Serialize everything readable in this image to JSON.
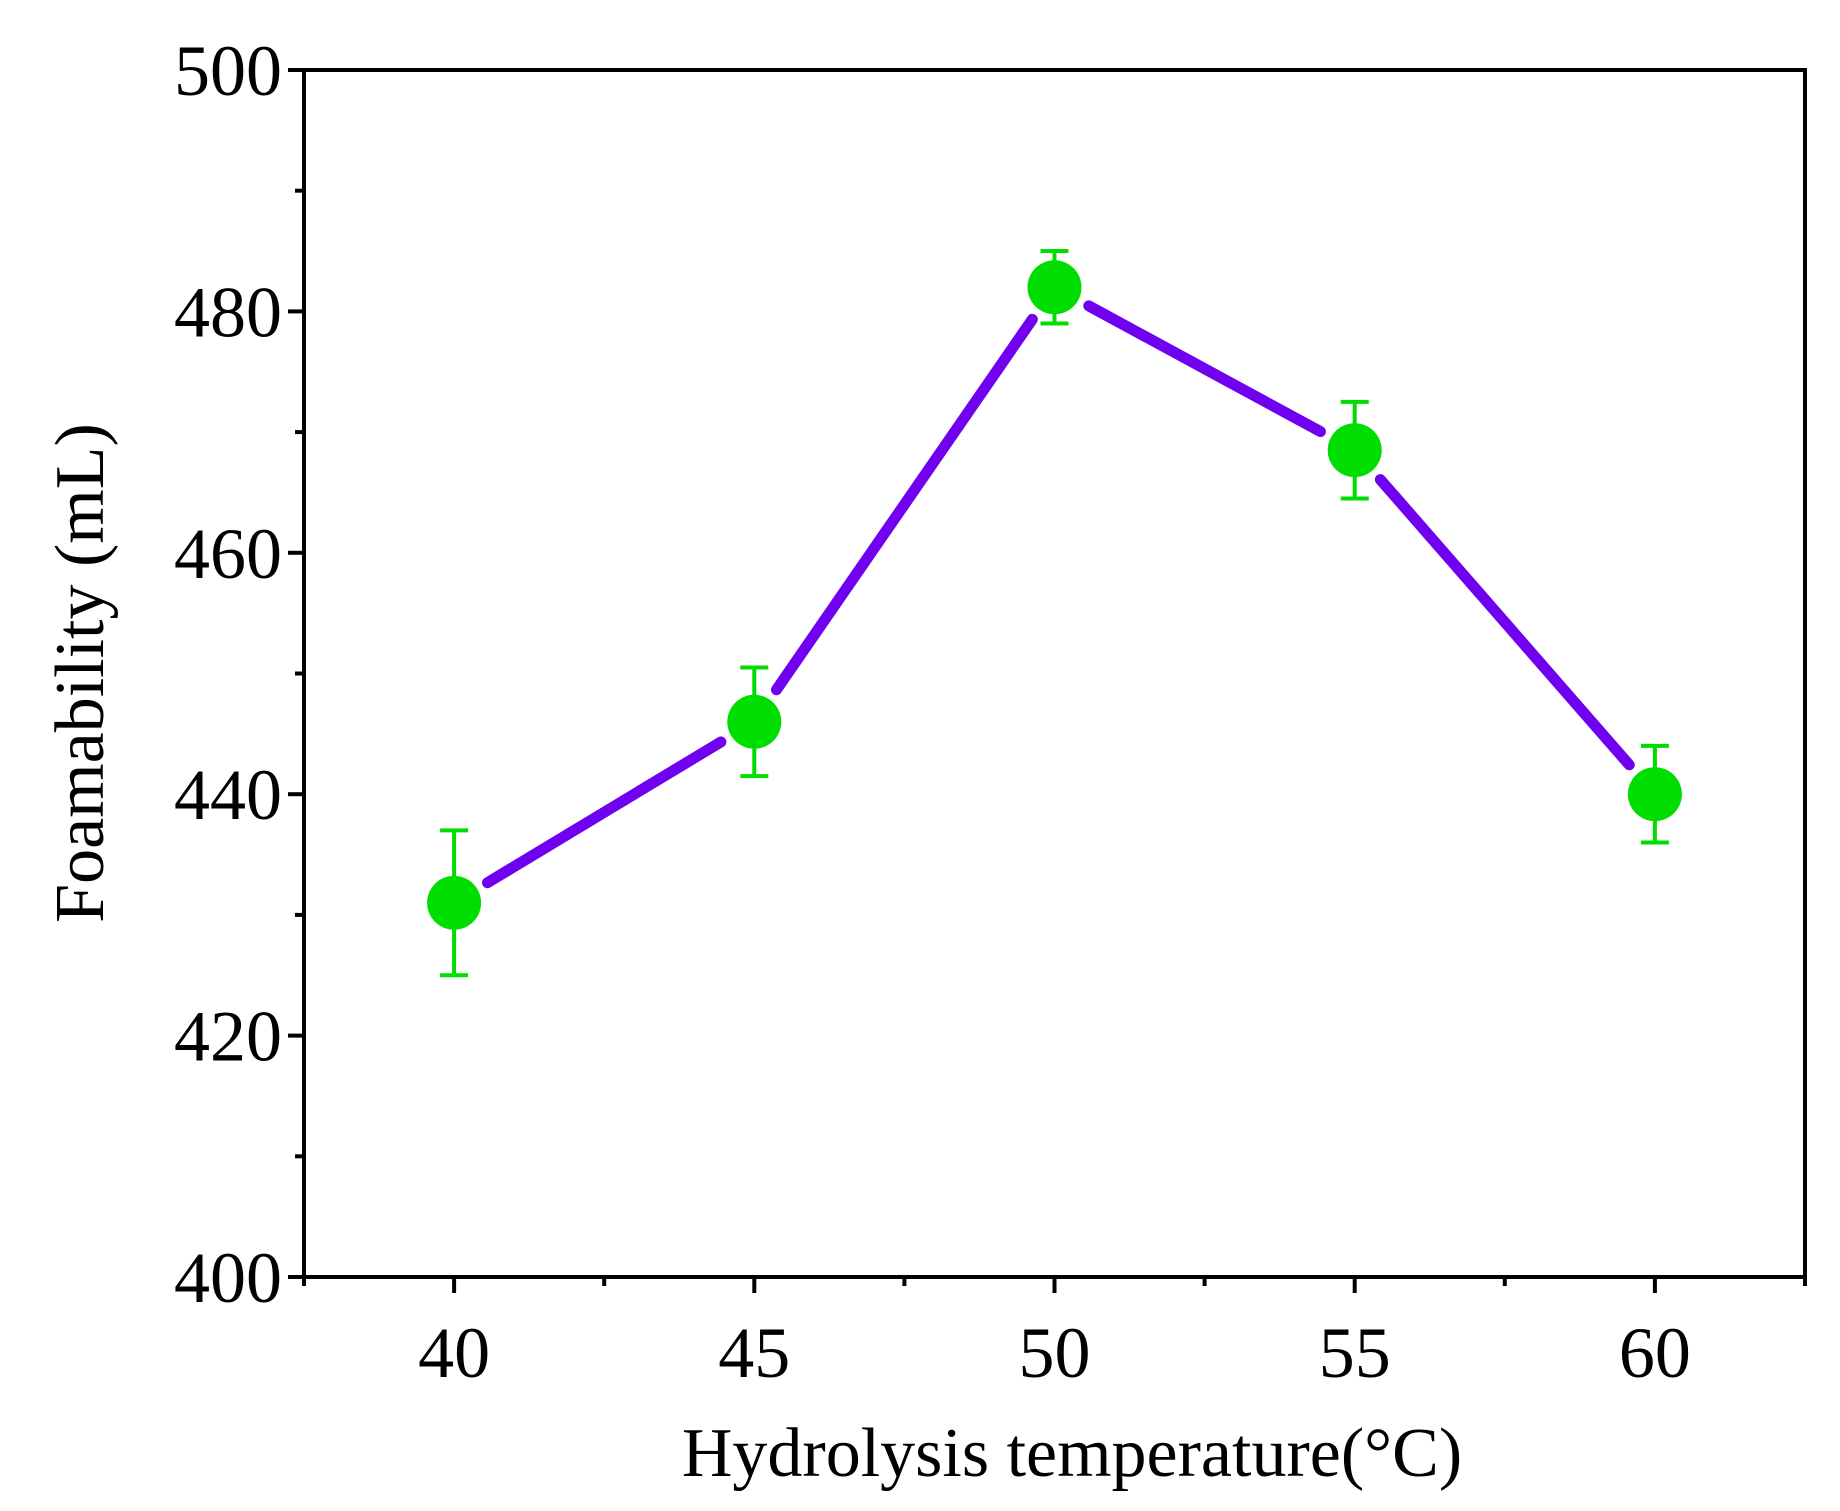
{
  "chart_data": {
    "type": "line",
    "title": "",
    "xlabel": "Hydrolysis temperature(°C)",
    "ylabel": "Foamability (mL)",
    "x": [
      40,
      45,
      50,
      55,
      60
    ],
    "xlim": [
      37.5,
      62.5
    ],
    "ylim": [
      400,
      500
    ],
    "x_ticks": [
      "40",
      "45",
      "50",
      "55",
      "60"
    ],
    "y_ticks": [
      "400",
      "420",
      "440",
      "460",
      "480",
      "500"
    ],
    "grid": false,
    "legend": "none",
    "series": [
      {
        "name": "Foamability",
        "values": [
          431,
          446,
          482,
          468.5,
          440
        ],
        "errors": [
          6,
          4.5,
          3,
          4,
          4
        ],
        "line_color": "#7000f0",
        "marker_color": "#00dd00"
      }
    ]
  }
}
